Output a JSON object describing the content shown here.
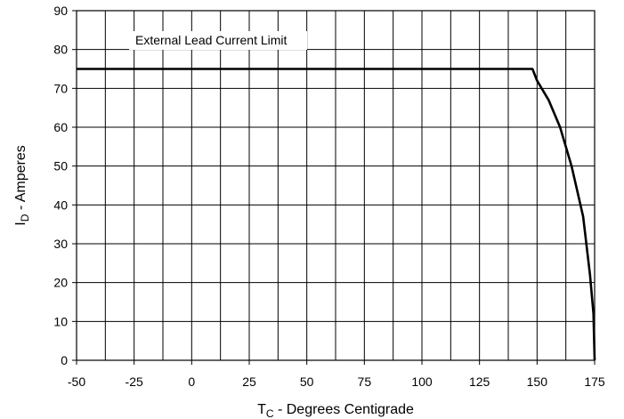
{
  "chart_data": {
    "type": "line",
    "xlabel_main": "T",
    "xlabel_sub": "C",
    "xlabel_rest": " - Degrees Centigrade",
    "ylabel_main": "I",
    "ylabel_sub": "D",
    "ylabel_rest": " - Amperes",
    "xlim": [
      -50,
      175
    ],
    "ylim": [
      0,
      90
    ],
    "x_ticks": [
      -50,
      -25,
      0,
      25,
      50,
      75,
      100,
      125,
      150,
      175
    ],
    "y_ticks": [
      0,
      10,
      20,
      30,
      40,
      50,
      60,
      70,
      80,
      90
    ],
    "x_tick_labels": [
      "-50",
      "-25",
      "0",
      "25",
      "50",
      "75",
      "100",
      "125",
      "150",
      "175"
    ],
    "y_tick_labels": [
      "0",
      "10",
      "20",
      "30",
      "40",
      "50",
      "60",
      "70",
      "80",
      "90"
    ],
    "grid": true,
    "x_grid_step": 12.5,
    "y_grid_step": 10,
    "annotation": "External Lead Current Limit",
    "series": [
      {
        "x": [
          -50,
          148,
          150,
          155,
          160,
          165,
          170,
          173,
          174.5,
          175
        ],
        "y": [
          75,
          75,
          72,
          67,
          60,
          50,
          37,
          22,
          12,
          0
        ]
      }
    ]
  }
}
